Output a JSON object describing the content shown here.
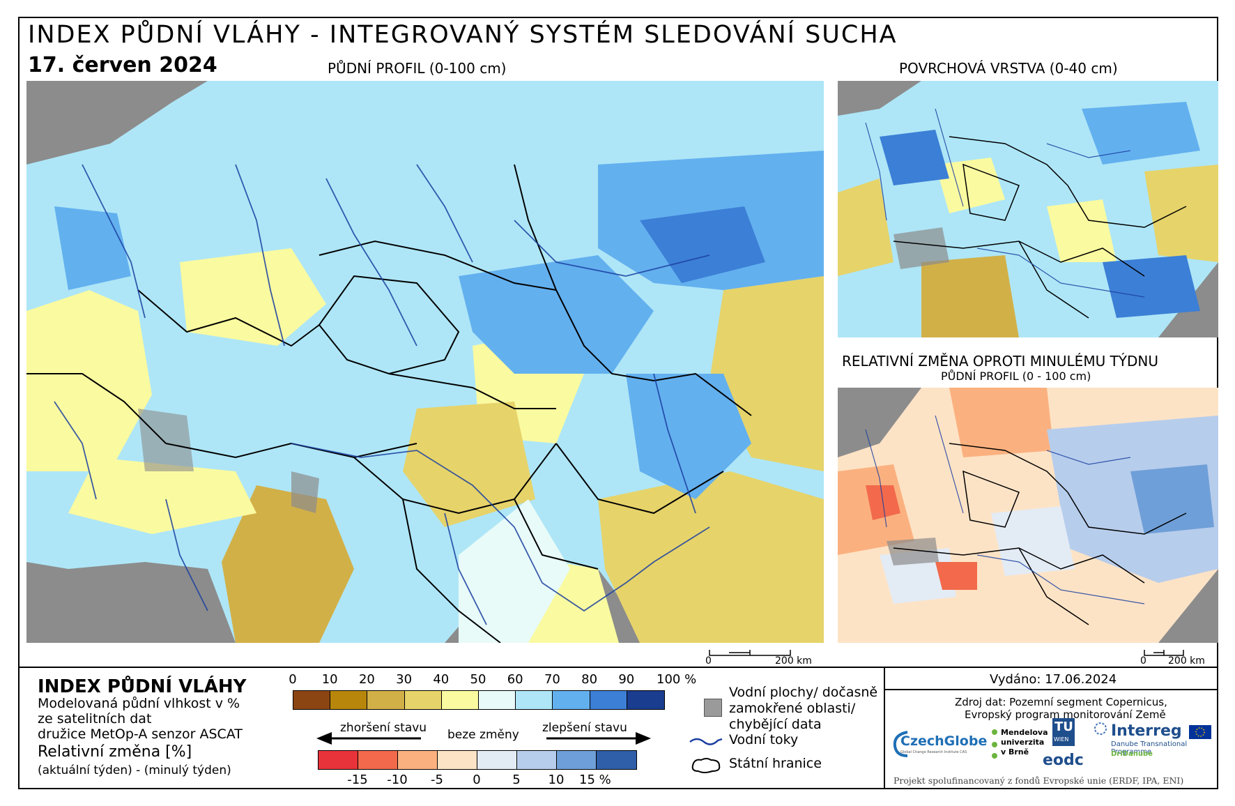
{
  "header": {
    "title": "INDEX PŮDNÍ VLÁHY - INTEGROVANÝ SYSTÉM SLEDOVÁNÍ SUCHA",
    "date": "17. červen 2024"
  },
  "maps": {
    "main_label": "PŮDNÍ PROFIL (0-100 cm)",
    "surface_label": "POVRCHOVÁ VRSTVA (0-40 cm)",
    "change_label": "RELATIVNÍ ZMĚNA OPROTI MINULÉMU TÝDNU",
    "change_sublabel": "PŮDNÍ PROFIL (0 - 100 cm)",
    "scale_main": {
      "zero": "0",
      "end": "200 km"
    },
    "scale_small": {
      "zero": "0",
      "end": "200 km"
    }
  },
  "legend": {
    "title": "INDEX PŮDNÍ VLÁHY",
    "desc1": "Modelovaná půdní vlhkost v %",
    "desc2": "ze satelitních dat",
    "desc3": "družice MetOp-A senzor ASCAT",
    "rel_title": "Relativní změna [%]",
    "rel_desc": "(aktuální týden) - (minulý týden)",
    "index_ticks": [
      "0",
      "10",
      "20",
      "30",
      "40",
      "50",
      "60",
      "70",
      "80",
      "90",
      "100 %"
    ],
    "index_colors": [
      "#8b4513",
      "#b8860b",
      "#d2b048",
      "#e6d36a",
      "#fafaa0",
      "#e8fbf8",
      "#aee6f7",
      "#63b0ef",
      "#3c7fd6",
      "#1b3d8f"
    ],
    "change_ticks": [
      "-15",
      "-10",
      "-5",
      "0",
      "5",
      "10",
      "15 %"
    ],
    "change_colors": [
      "#e8333a",
      "#f26a4b",
      "#fbb17f",
      "#fde3c6",
      "#e3ebf5",
      "#b7cdec",
      "#6f9fd8",
      "#2f5fa8"
    ],
    "arrow_left": "zhoršení stavu",
    "arrow_mid": "beze změny",
    "arrow_right": "zlepšení stavu",
    "water_label_1": "Vodní plochy/ dočasně",
    "water_label_2": "zamokřené oblasti/",
    "water_label_3": "chybějící data",
    "rivers_label": "Vodní toky",
    "borders_label": "Státní hranice"
  },
  "info": {
    "issued": "Vydáno: 17.06.2024",
    "source1": "Zdroj dat: Pozemní segment Copernicus,",
    "source2": "Evropský program monitorování Země",
    "footer": "Projekt spolufinancovaný z fondů Evropské unie (ERDF, IPA, ENI)",
    "logo_czechglobe": "CzechGlobe",
    "logo_czechglobe_sub": "Global Change Research Institute CAS",
    "logo_mendel_1": "Mendelova",
    "logo_mendel_2": "univerzita",
    "logo_mendel_3": "v Brně",
    "logo_tu": "TU",
    "logo_tu_sub": "WIEN",
    "logo_eodc": "eodc",
    "logo_interreg": "Interreg",
    "logo_interreg_sub": "Danube Transnational Programme",
    "logo_dridanube": "DriDanube"
  },
  "colors": {
    "sea": "#8c8c8c",
    "frame": "#000000",
    "river": "#1a3fa0"
  }
}
